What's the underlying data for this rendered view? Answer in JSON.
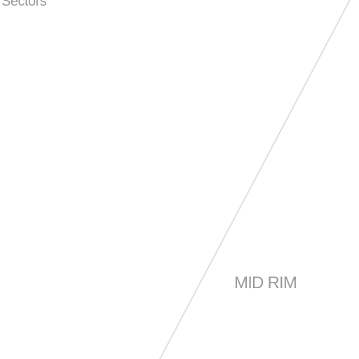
{
  "map": {
    "labels": {
      "sectors": "Sectors",
      "mid_rim": "MID RIM"
    },
    "colors": {
      "background": "#ffffff",
      "boundary_line": "#e0e0e0",
      "label_text": "#9a9a9a"
    }
  }
}
